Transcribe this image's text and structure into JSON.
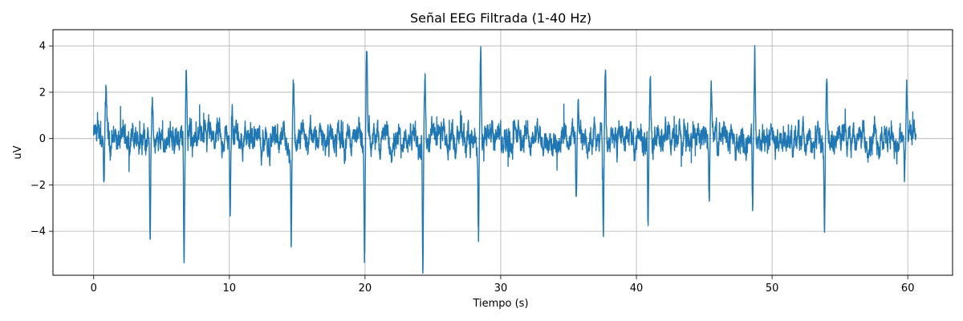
{
  "chart_data": {
    "type": "line",
    "title": "Señal EEG Filtrada (1-40 Hz)",
    "xlabel": "Tiempo (s)",
    "ylabel": "uV",
    "xlim": [
      -3,
      63.3
    ],
    "ylim": [
      -5.9,
      4.7
    ],
    "x_ticks": [
      0,
      10,
      20,
      30,
      40,
      50,
      60
    ],
    "x_tick_labels": [
      "0",
      "10",
      "20",
      "30",
      "40",
      "50",
      "60"
    ],
    "y_ticks": [
      -4,
      -2,
      0,
      2,
      4
    ],
    "y_tick_labels": [
      "−4",
      "−2",
      "0",
      "2",
      "4"
    ],
    "grid": true,
    "legend": "none",
    "line_color": "#1f77b4",
    "series": [
      {
        "x_start": 0,
        "x_end": 60.6,
        "baseline_amplitude": 0.45,
        "spikes": [
          {
            "x": 0.8,
            "low": -2.7,
            "high": 2.3
          },
          {
            "x": 4.2,
            "low": -3.9,
            "high": 1.4
          },
          {
            "x": 6.7,
            "low": -5.2,
            "high": 3.0
          },
          {
            "x": 10.1,
            "low": -3.3,
            "high": 1.8
          },
          {
            "x": 14.6,
            "low": -4.5,
            "high": 2.7
          },
          {
            "x": 20.0,
            "low": -4.9,
            "high": 3.6
          },
          {
            "x": 24.3,
            "low": -5.4,
            "high": 2.4
          },
          {
            "x": 28.4,
            "low": -4.5,
            "high": 3.8
          },
          {
            "x": 35.6,
            "low": -2.8,
            "high": 2.0
          },
          {
            "x": 37.6,
            "low": -4.4,
            "high": 3.1
          },
          {
            "x": 40.9,
            "low": -4.1,
            "high": 2.4
          },
          {
            "x": 45.4,
            "low": -2.7,
            "high": 2.5
          },
          {
            "x": 48.6,
            "low": -3.4,
            "high": 4.2
          },
          {
            "x": 53.9,
            "low": -3.6,
            "high": 2.4
          },
          {
            "x": 59.8,
            "low": -1.3,
            "high": 2.1
          }
        ]
      }
    ]
  }
}
